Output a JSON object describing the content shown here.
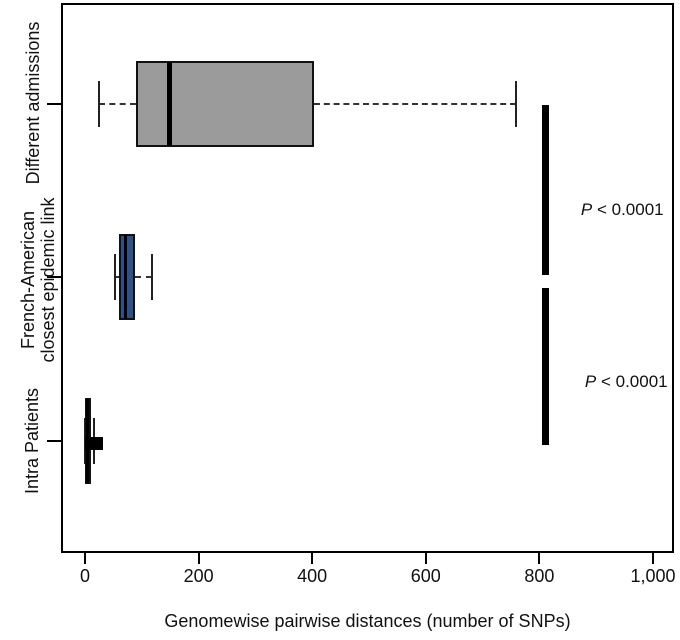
{
  "chart_data": {
    "type": "boxplot",
    "orientation": "horizontal",
    "xlabel": "Genomewise pairwise distances (number of SNPs)",
    "x_ticks": [
      "0",
      "200",
      "400",
      "600",
      "800",
      "1,000"
    ],
    "x_tick_values": [
      0,
      200,
      400,
      600,
      800,
      1000
    ],
    "xlim": [
      -40,
      1040
    ],
    "grid": false,
    "legend": "none",
    "categories": [
      {
        "lines": [
          "Different admissions"
        ]
      },
      {
        "lines": [
          "French-American",
          "closest epidemic link"
        ]
      },
      {
        "lines": [
          "Intra Patients"
        ]
      }
    ],
    "boxes": [
      {
        "name": "Different admissions",
        "whisker_low": 25,
        "q1": 90,
        "median": 148,
        "q3": 403,
        "whisker_high": 758,
        "fill": "#9b9b9b"
      },
      {
        "name": "French-American closest epidemic link",
        "whisker_low": 53,
        "q1": 60,
        "median": 72,
        "q3": 88,
        "whisker_high": 118,
        "fill": "#2e5188"
      },
      {
        "name": "Intra Patients",
        "whisker_low": 0,
        "q1": 0,
        "median": 4,
        "q3": 11,
        "whisker_high": 15,
        "marker_square": 15,
        "fill": "#161616"
      }
    ],
    "annotations": [
      {
        "p": "P",
        "rest": " < 0.0001",
        "bar_x": 810,
        "between": "Different admissions vs French-American closest epidemic link"
      },
      {
        "p": "P",
        "rest": " < 0.0001",
        "bar_x": 810,
        "between": "French-American closest epidemic link vs Intra Patients"
      }
    ],
    "colors": {
      "box_gray": "#9b9b9b",
      "box_blue": "#2e5188",
      "box_black": "#161616",
      "line": "#000000",
      "whisker_dash": "#333333"
    }
  }
}
